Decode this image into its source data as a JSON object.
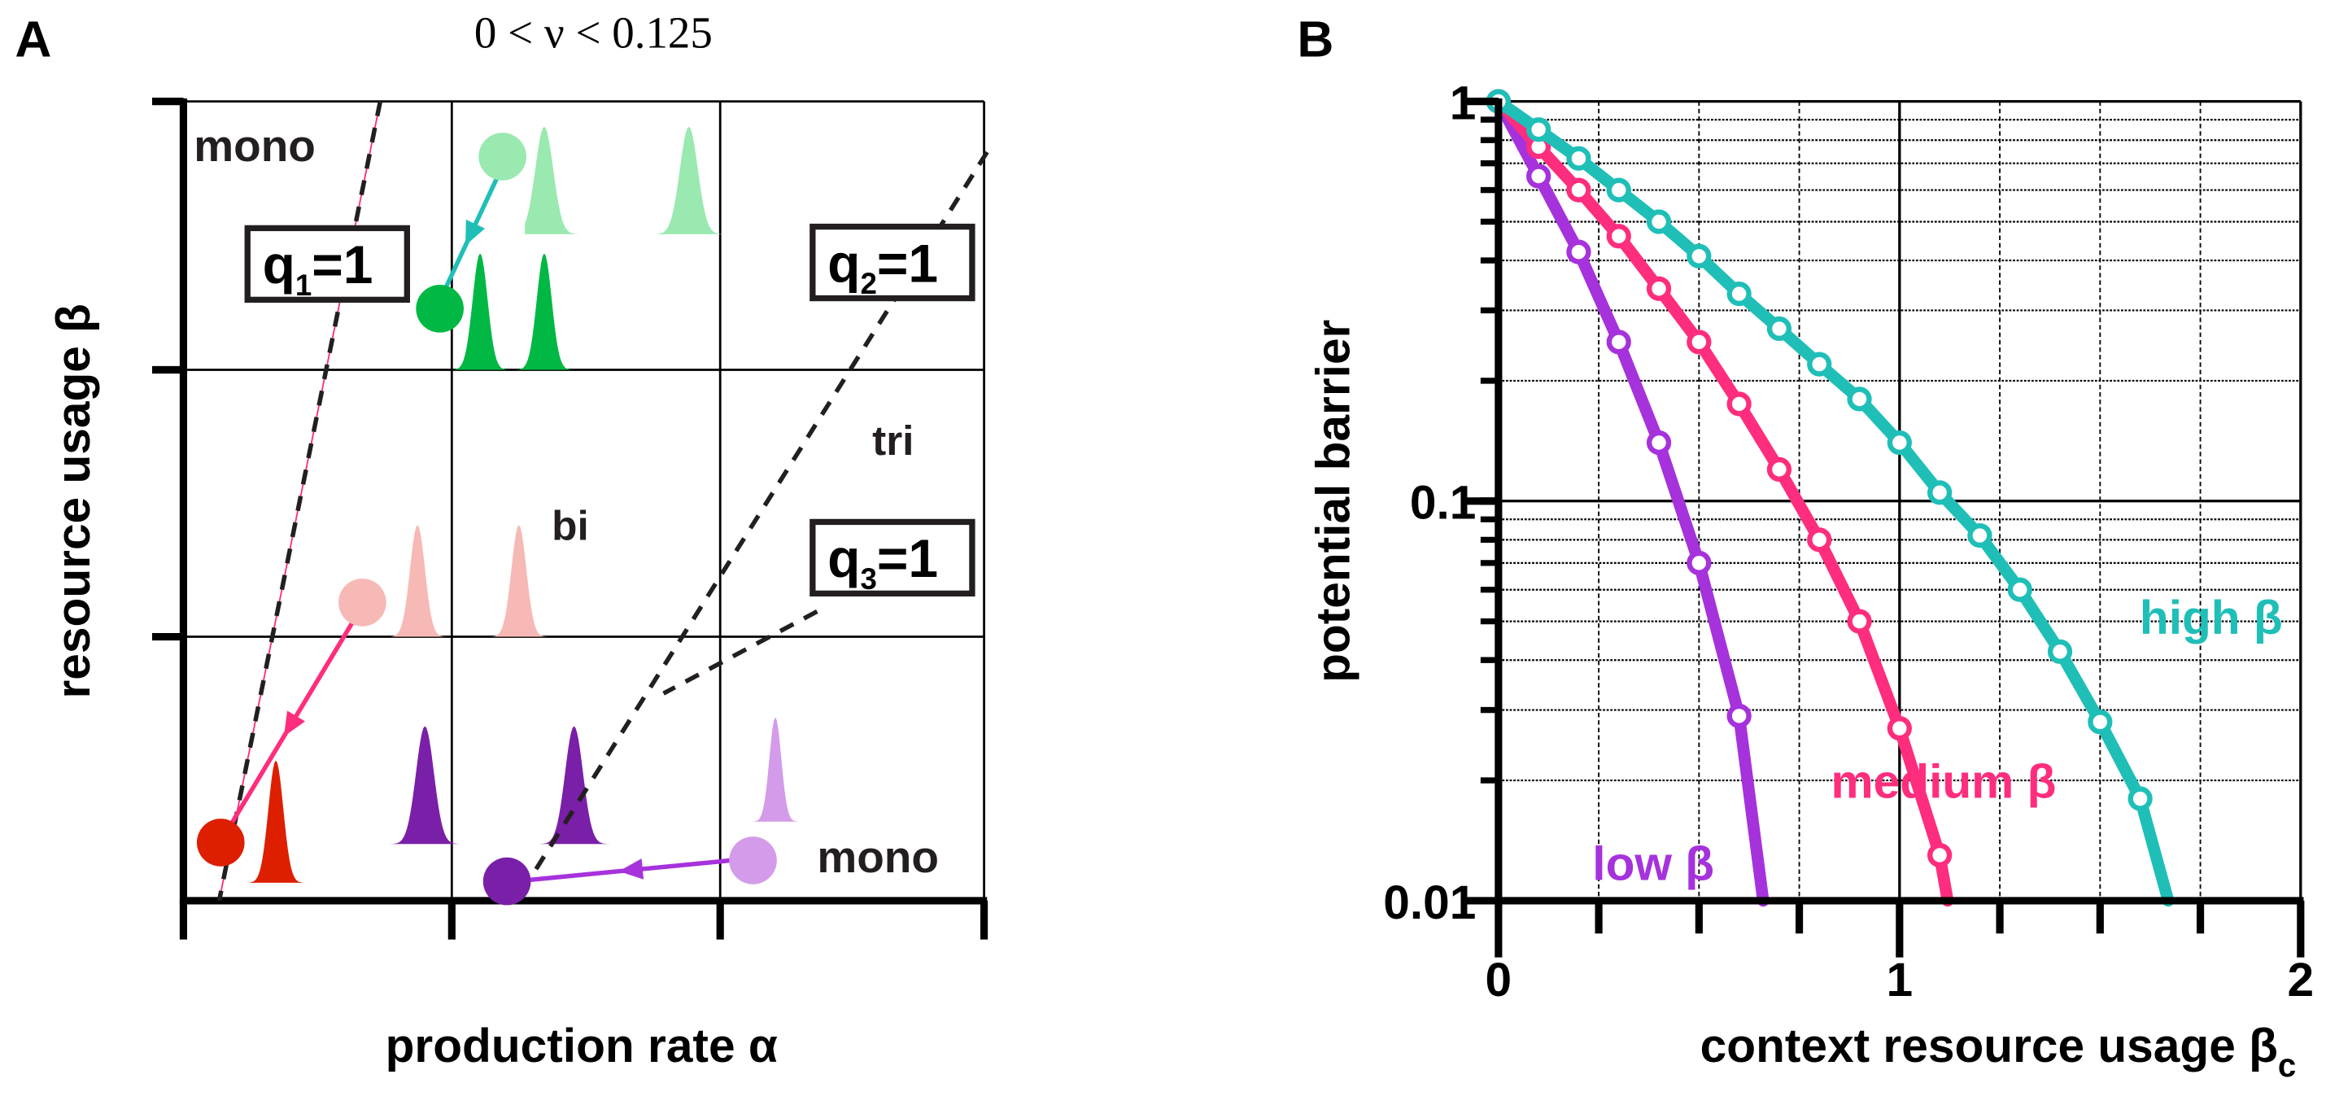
{
  "panel_a": {
    "label": "A",
    "title": "0 < ν < 0.125",
    "ylabel": "resource usage β",
    "xlabel": "production rate α",
    "regions": {
      "mono_top": "mono",
      "bi": "bi",
      "tri": "tri",
      "mono_bottom": "mono"
    },
    "boundaries": {
      "q1": "q",
      "q1_sub": "1",
      "q1_eq": "=1",
      "q2": "q",
      "q2_sub": "2",
      "q2_eq": "=1",
      "q3": "q",
      "q3_sub": "3",
      "q3_eq": "=1"
    },
    "colors": {
      "teal": "#1fbfb8",
      "light_green": "#99e9b0",
      "green": "#00b843",
      "light_pink": "#f7b9b5",
      "pink": "#ff2d7d",
      "red": "#dd1f00",
      "dark_purple": "#7a1fa8",
      "light_purple": "#d39be9",
      "purple": "#a632dc"
    }
  },
  "chart_data": {
    "type": "line",
    "panel_label": "B",
    "xlabel": "context resource usage β",
    "xlabel_sub": "c",
    "ylabel": "potential barrier",
    "xlim": [
      0,
      2
    ],
    "ylim": [
      0.01,
      1
    ],
    "yscale": "log",
    "x_ticks": [
      "0",
      "1",
      "2"
    ],
    "y_ticks": [
      "1",
      "0.1",
      "0.01"
    ],
    "grid": true,
    "series": [
      {
        "name": "high β",
        "color": "#1fbfb8",
        "x": [
          0,
          0.1,
          0.2,
          0.3,
          0.4,
          0.5,
          0.6,
          0.7,
          0.8,
          0.9,
          1.0,
          1.1,
          1.2,
          1.3,
          1.4,
          1.5,
          1.6
        ],
        "y": [
          1,
          0.85,
          0.72,
          0.6,
          0.5,
          0.41,
          0.33,
          0.27,
          0.22,
          0.18,
          0.14,
          0.105,
          0.082,
          0.06,
          0.042,
          0.028,
          0.018
        ],
        "end": [
          1.67,
          0.01
        ]
      },
      {
        "name": "medium β",
        "color": "#ff2d7d",
        "x": [
          0,
          0.1,
          0.2,
          0.3,
          0.4,
          0.5,
          0.6,
          0.7,
          0.8,
          0.9,
          1.0,
          1.1
        ],
        "y": [
          1,
          0.77,
          0.6,
          0.46,
          0.34,
          0.25,
          0.175,
          0.12,
          0.08,
          0.05,
          0.027,
          0.013
        ],
        "end": [
          1.12,
          0.01
        ]
      },
      {
        "name": "low β",
        "color": "#a632dc",
        "x": [
          0,
          0.1,
          0.2,
          0.3,
          0.4,
          0.5,
          0.6
        ],
        "y": [
          1,
          0.65,
          0.42,
          0.25,
          0.14,
          0.07,
          0.029
        ],
        "end": [
          0.66,
          0.01
        ]
      }
    ]
  }
}
